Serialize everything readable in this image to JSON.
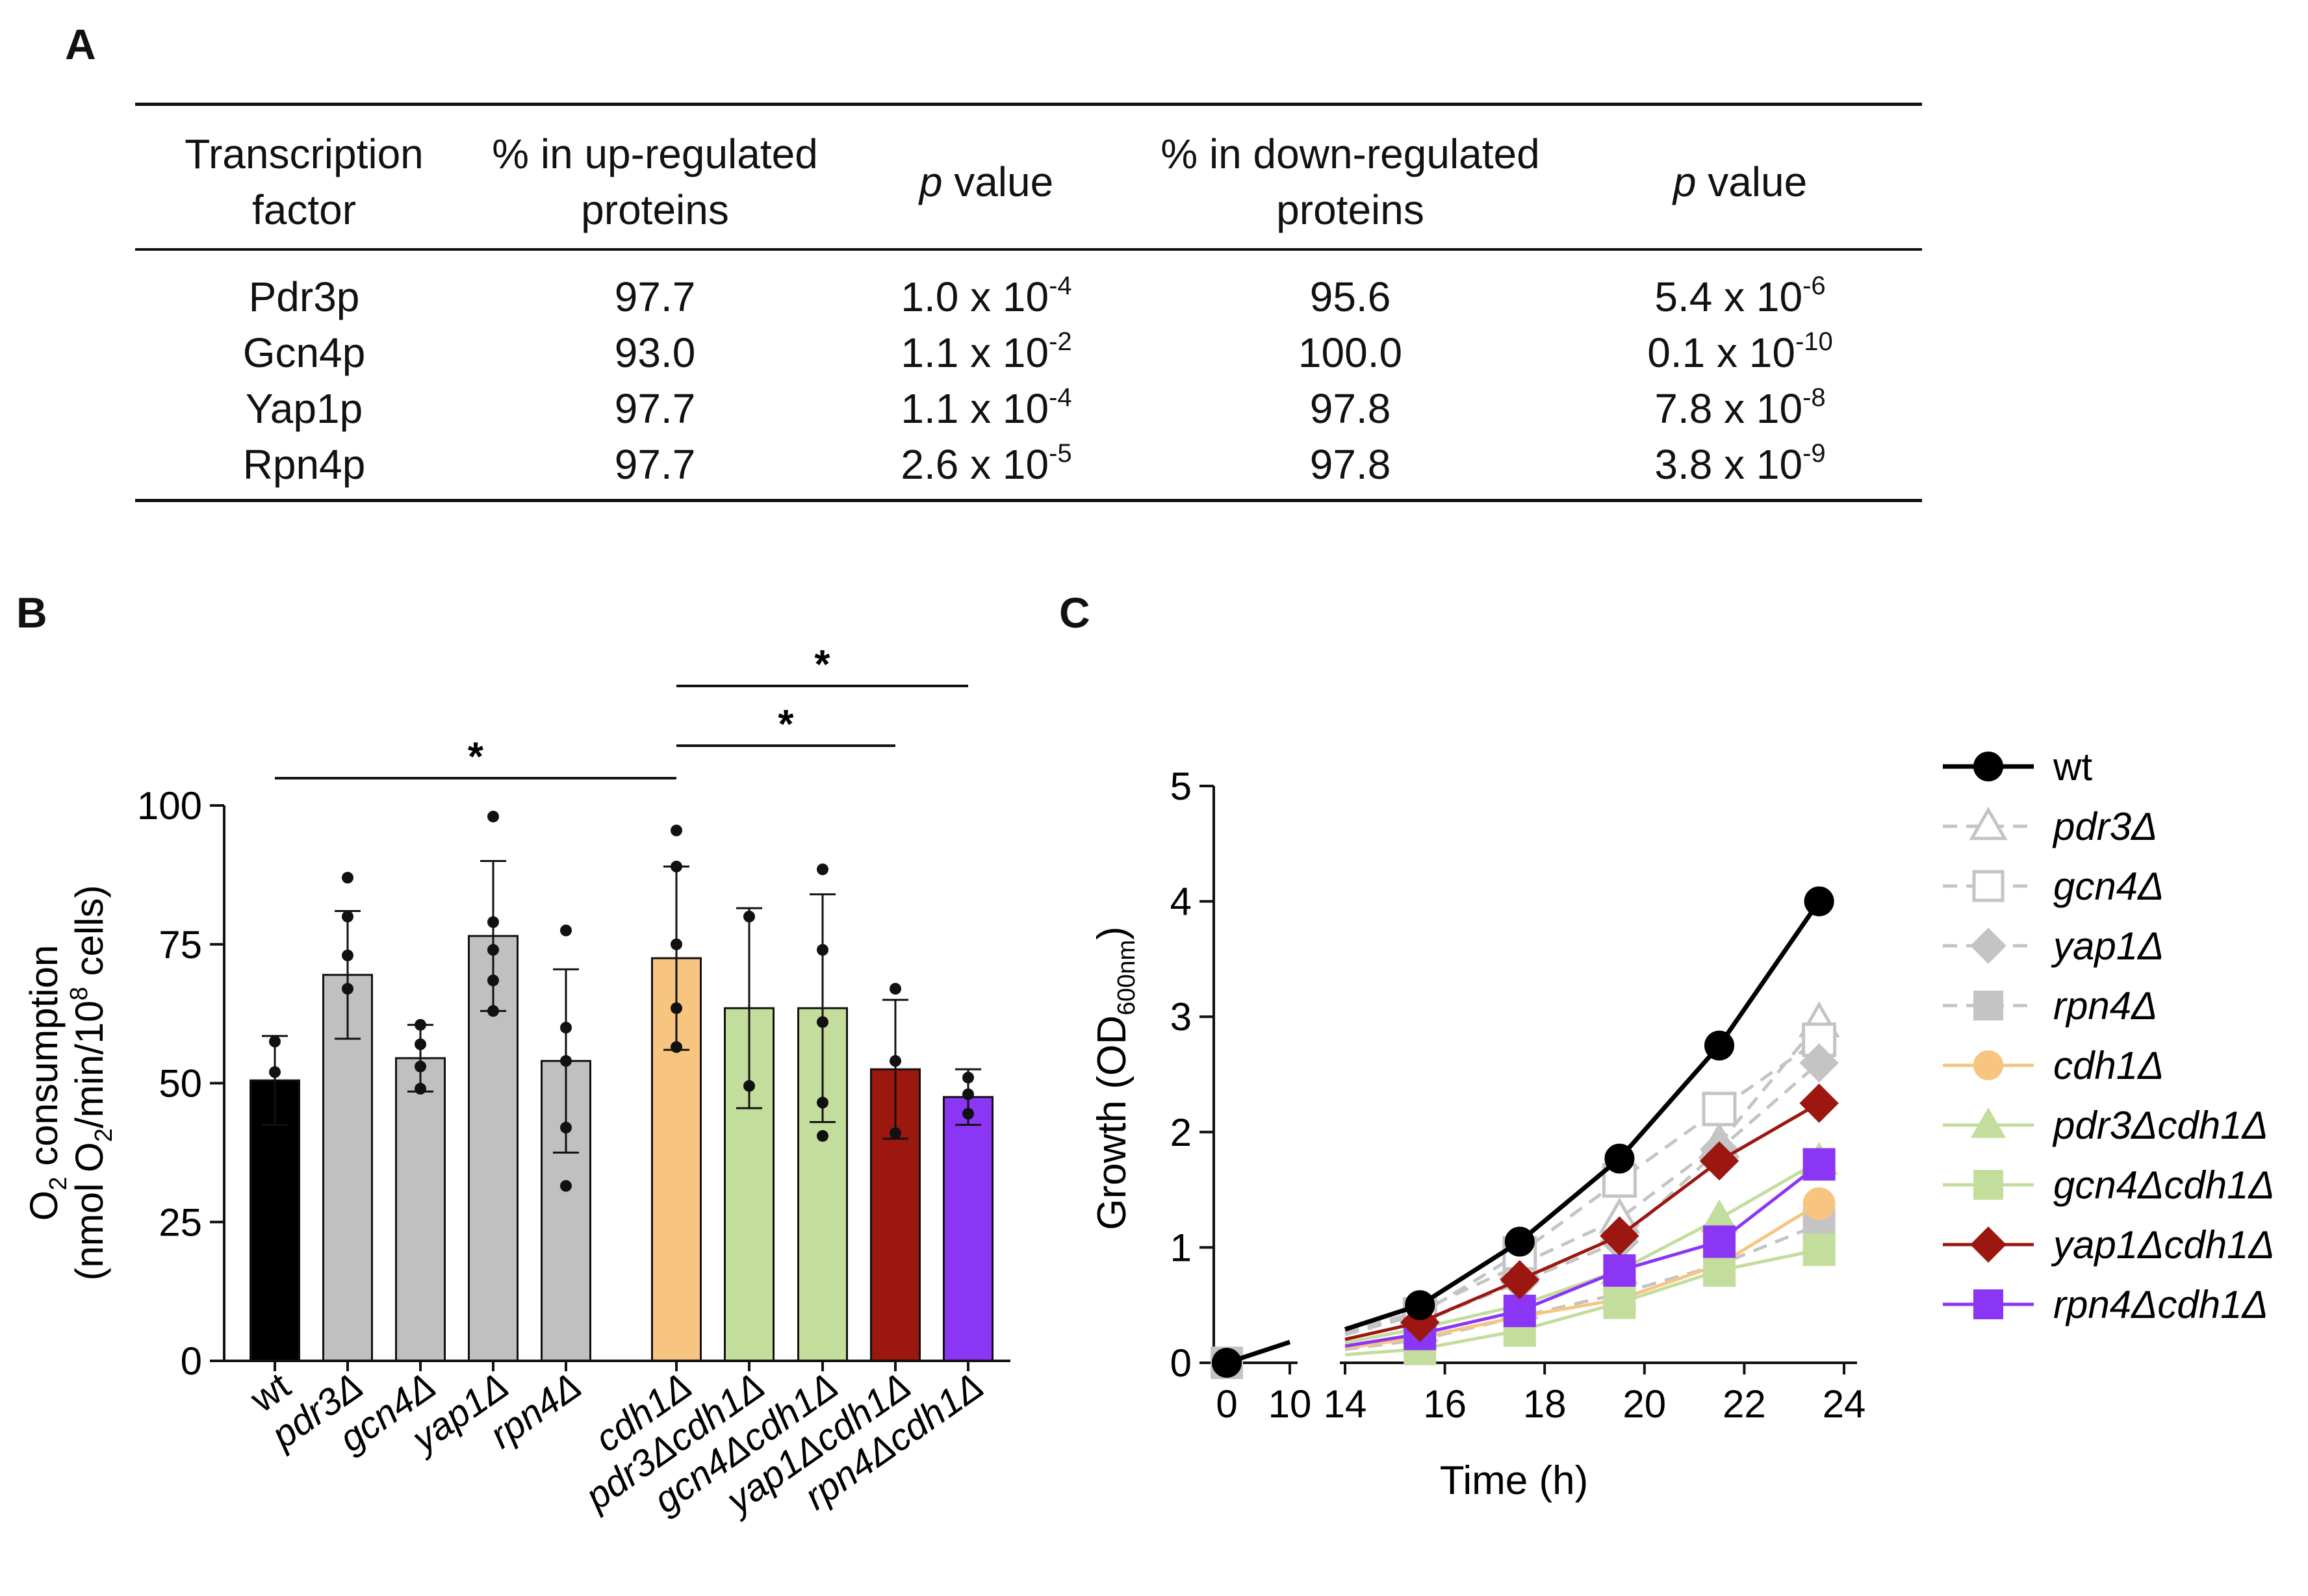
{
  "panel_labels": {
    "a": "A",
    "b": "B",
    "c": "C"
  },
  "table": {
    "headers": [
      {
        "line1": "Transcription",
        "line2": "factor"
      },
      {
        "line1": "% in up-regulated",
        "line2": "proteins"
      },
      {
        "italic": "p",
        "rest": " value"
      },
      {
        "line1": "% in down-regulated",
        "line2": "proteins"
      },
      {
        "italic": "p",
        "rest": " value"
      }
    ],
    "rows": [
      {
        "tf": "Pdr3p",
        "up": "97.7",
        "p_up": {
          "base": "1.0 x 10",
          "exp": "-4"
        },
        "down": "95.6",
        "p_down": {
          "base": "5.4 x 10",
          "exp": "-6"
        }
      },
      {
        "tf": "Gcn4p",
        "up": "93.0",
        "p_up": {
          "base": "1.1 x 10",
          "exp": "-2"
        },
        "down": "100.0",
        "p_down": {
          "base": "0.1 x 10",
          "exp": "-10"
        }
      },
      {
        "tf": "Yap1p",
        "up": "97.7",
        "p_up": {
          "base": "1.1 x 10",
          "exp": "-4"
        },
        "down": "97.8",
        "p_down": {
          "base": "7.8 x 10",
          "exp": "-8"
        }
      },
      {
        "tf": "Rpn4p",
        "up": "97.7",
        "p_up": {
          "base": "2.6 x 10",
          "exp": "-5"
        },
        "down": "97.8",
        "p_down": {
          "base": "3.8 x 10",
          "exp": "-9"
        }
      }
    ]
  },
  "chart_data": [
    {
      "type": "bar",
      "panel": "B",
      "ylabel_line1": "O2 consumption",
      "ylabel_line2": "(nmol O2/min/10^8 cells)",
      "ylabel_parts": {
        "o": "O",
        "o_sub": "2",
        "l1_rest": " consumption",
        "l2_a": "(nmol O",
        "l2_sub": "2",
        "l2_b": "/min/10",
        "l2_sup": "8",
        "l2_c": " cells)"
      },
      "ylim": [
        0,
        100
      ],
      "yticks": [
        "0",
        "25",
        "50",
        "75",
        "100"
      ],
      "categories": [
        "wt",
        "pdr3Δ",
        "gcn4Δ",
        "yap1Δ",
        "rpn4Δ",
        "cdh1Δ",
        "pdr3Δcdh1Δ",
        "gcn4Δcdh1Δ",
        "yap1Δcdh1Δ",
        "rpn4Δcdh1Δ"
      ],
      "category_italic": [
        false,
        true,
        true,
        true,
        true,
        true,
        true,
        true,
        true,
        true
      ],
      "values": [
        50.5,
        69.5,
        54.5,
        76.5,
        54,
        72.5,
        63.5,
        63.5,
        52.5,
        47.5
      ],
      "error": [
        8,
        11.5,
        6,
        13.5,
        16.5,
        16.5,
        18,
        20.5,
        12.5,
        5
      ],
      "colors": [
        "#000000",
        "#c0c0c0",
        "#c0c0c0",
        "#c0c0c0",
        "#c0c0c0",
        "#f7c580",
        "#c3dd9d",
        "#c3dd9d",
        "#9b1710",
        "#8c36f5"
      ],
      "points": [
        [
          57.5,
          52
        ],
        [
          87,
          80,
          73,
          67
        ],
        [
          60.5,
          57,
          53,
          49
        ],
        [
          98,
          79,
          74,
          68.5,
          63
        ],
        [
          77.5,
          60,
          54,
          42,
          31.5
        ],
        [
          95.5,
          89,
          75,
          63.5,
          56.5
        ],
        [
          80,
          49.5
        ],
        [
          88.5,
          74,
          61,
          46.5,
          40.5
        ],
        [
          67,
          54,
          41
        ],
        [
          51,
          48,
          44.5
        ]
      ],
      "significance": [
        {
          "from": 0,
          "to": 5,
          "label": "*"
        },
        {
          "from": 5,
          "to": 8,
          "label": "*"
        },
        {
          "from": 5,
          "to": 9,
          "label": "*"
        }
      ]
    },
    {
      "type": "line",
      "panel": "C",
      "xlabel": "Time (h)",
      "ylabel_parts": {
        "a": "Growth (OD",
        "sub": "600nm",
        "b": ")"
      },
      "ylim": [
        0,
        5
      ],
      "yticks": [
        "0",
        "1",
        "2",
        "3",
        "4",
        "5"
      ],
      "xticks": [
        "0",
        "10",
        "14",
        "16",
        "18",
        "20",
        "22",
        "24"
      ],
      "x_segments": [
        {
          "range": [
            0,
            10
          ]
        },
        {
          "range": [
            14,
            24
          ]
        }
      ],
      "x": [
        0,
        15.5,
        17.5,
        19.5,
        21.5,
        23.5
      ],
      "series": [
        {
          "name": "wt",
          "italic": false,
          "color": "#000000",
          "dashed": false,
          "marker": "circle",
          "filled": true,
          "values": [
            0.0,
            0.5,
            1.05,
            1.77,
            2.75,
            4.0
          ]
        },
        {
          "name": "pdr3Δ",
          "italic": true,
          "color": "#c4c4c4",
          "dashed": true,
          "marker": "triangle",
          "filled": false,
          "values": [
            0.0,
            0.45,
            0.85,
            1.25,
            1.9,
            2.95
          ]
        },
        {
          "name": "gcn4Δ",
          "italic": true,
          "color": "#c4c4c4",
          "dashed": true,
          "marker": "square",
          "filled": false,
          "values": [
            0.0,
            0.42,
            0.95,
            1.58,
            2.2,
            2.8
          ]
        },
        {
          "name": "yap1Δ",
          "italic": true,
          "color": "#c4c4c4",
          "dashed": true,
          "marker": "diamond",
          "filled": true,
          "values": [
            0.0,
            0.35,
            0.7,
            1.05,
            1.85,
            2.6
          ]
        },
        {
          "name": "rpn4Δ",
          "italic": true,
          "color": "#c4c4c4",
          "dashed": true,
          "marker": "square",
          "filled": true,
          "values": [
            0.0,
            0.2,
            0.4,
            0.6,
            0.85,
            1.2
          ]
        },
        {
          "name": "cdh1Δ",
          "italic": true,
          "color": "#f7c580",
          "dashed": false,
          "marker": "circle",
          "filled": true,
          "values": [
            0.0,
            0.22,
            0.4,
            0.55,
            0.85,
            1.38
          ]
        },
        {
          "name": "pdr3Δcdh1Δ",
          "italic": true,
          "color": "#c3dd9d",
          "dashed": false,
          "marker": "triangle",
          "filled": true,
          "values": [
            0.0,
            0.3,
            0.5,
            0.8,
            1.25,
            1.75
          ]
        },
        {
          "name": "gcn4Δcdh1Δ",
          "italic": true,
          "color": "#c3dd9d",
          "dashed": false,
          "marker": "square",
          "filled": true,
          "values": [
            0.0,
            0.12,
            0.28,
            0.52,
            0.8,
            0.98
          ]
        },
        {
          "name": "yap1Δcdh1Δ",
          "italic": true,
          "color": "#9b1710",
          "dashed": false,
          "marker": "diamond",
          "filled": true,
          "values": [
            0.0,
            0.35,
            0.72,
            1.1,
            1.75,
            2.25
          ]
        },
        {
          "name": "rpn4Δcdh1Δ",
          "italic": true,
          "color": "#8c36f5",
          "dashed": false,
          "marker": "square",
          "filled": true,
          "values": [
            0.0,
            0.25,
            0.45,
            0.8,
            1.05,
            1.72
          ]
        }
      ]
    }
  ]
}
